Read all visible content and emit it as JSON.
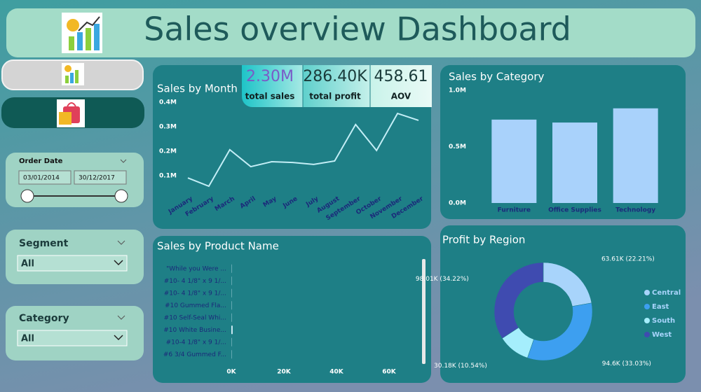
{
  "header": {
    "title": "Sales overview Dashboard"
  },
  "kpis": [
    {
      "value": "2.30M",
      "label": "total sales"
    },
    {
      "value": "286.40K",
      "label": "total profit"
    },
    {
      "value": "458.61",
      "label": "AOV"
    }
  ],
  "filters": {
    "order_date": {
      "label": "Order Date",
      "start": "03/01/2014",
      "end": "30/12/2017"
    },
    "segment": {
      "label": "Segment",
      "value": "All"
    },
    "category": {
      "label": "Category",
      "value": "All"
    }
  },
  "chart_data": [
    {
      "type": "line",
      "title": "Sales by Month",
      "categories": [
        "January",
        "February",
        "March",
        "April",
        "May",
        "June",
        "July",
        "August",
        "September",
        "October",
        "November",
        "December"
      ],
      "values": [
        0.091,
        0.057,
        0.206,
        0.137,
        0.157,
        0.154,
        0.146,
        0.16,
        0.309,
        0.203,
        0.354,
        0.326
      ],
      "color": "#c3eef6",
      "ylim": [
        0.04,
        0.41
      ],
      "yticks": [
        {
          "value": 0.1,
          "label": "0.1M"
        },
        {
          "value": 0.2,
          "label": "0.2M"
        },
        {
          "value": 0.3,
          "label": "0.3M"
        },
        {
          "value": 0.4,
          "label": "0.4M"
        }
      ]
    },
    {
      "type": "bar",
      "title": "Sales by Category",
      "categories": [
        "Furniture",
        "Office Supplies",
        "Technology"
      ],
      "values": [
        0.74,
        0.714,
        0.84
      ],
      "color": "#a9d2fb",
      "ylim": [
        0,
        1
      ],
      "yticks": [
        {
          "value": 0,
          "label": "0.0M"
        },
        {
          "value": 0.5,
          "label": "0.5M"
        },
        {
          "value": 1,
          "label": "1.0M"
        }
      ]
    },
    {
      "type": "hbar",
      "title": "Sales by Product Name",
      "categories": [
        "\"While you Were ...",
        "#10- 4 1/8\" x 9 1/...",
        "#10- 4 1/8\" x 9 1/...",
        "#10 Gummed Fla...",
        "#10 Self-Seal Whi...",
        "#10 White Busine...",
        "#10-4 1/8\" x 9 1/...",
        "#6 3/4 Gummed F..."
      ],
      "values": [
        0.1,
        0.1,
        0.1,
        0.1,
        0.1,
        0.5,
        0.1,
        0.1
      ],
      "color": "#d4eef8",
      "xlim": [
        0,
        72
      ],
      "xticks": [
        {
          "value": 0,
          "label": "0K"
        },
        {
          "value": 20,
          "label": "20K"
        },
        {
          "value": 40,
          "label": "40K"
        },
        {
          "value": 60,
          "label": "60K"
        }
      ]
    },
    {
      "type": "donut",
      "title": "Profit by Region",
      "categories": [
        "Central",
        "East",
        "South",
        "West"
      ],
      "values": [
        63.61,
        94.6,
        30.18,
        98.01
      ],
      "value_labels": [
        "63.61K (22.21%)",
        "94.6K (33.03%)",
        "30.18K (10.54%)",
        "98.01K (34.22%)"
      ],
      "colors": [
        "#a8d4fb",
        "#3d9ff0",
        "#a5eefc",
        "#3f4bb0"
      ],
      "legend": "right"
    }
  ]
}
